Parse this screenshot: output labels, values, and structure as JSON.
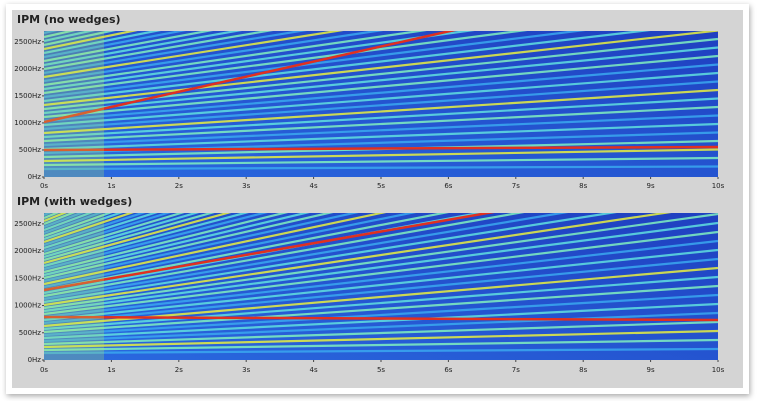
{
  "chart_data": [
    {
      "type": "spectrogram",
      "title": "IPM (no wedges)",
      "xlim": [
        0,
        10
      ],
      "ylim": [
        0,
        2700
      ],
      "xticks": [
        {
          "value": 0,
          "label": "0s"
        },
        {
          "value": 1,
          "label": "1s"
        },
        {
          "value": 2,
          "label": "2s"
        },
        {
          "value": 3,
          "label": "3s"
        },
        {
          "value": 4,
          "label": "4s"
        },
        {
          "value": 5,
          "label": "5s"
        },
        {
          "value": 6,
          "label": "6s"
        },
        {
          "value": 7,
          "label": "7s"
        },
        {
          "value": 8,
          "label": "8s"
        },
        {
          "value": 9,
          "label": "9s"
        },
        {
          "value": 10,
          "label": "10s"
        }
      ],
      "yticks": [
        {
          "value": 0,
          "label": "0Hz"
        },
        {
          "value": 500,
          "label": "500Hz"
        },
        {
          "value": 1000,
          "label": "1000Hz"
        },
        {
          "value": 1500,
          "label": "1500Hz"
        },
        {
          "value": 2000,
          "label": "2000Hz"
        },
        {
          "value": 2500,
          "label": "2500Hz"
        }
      ]
    },
    {
      "type": "spectrogram",
      "title": "IPM (with wedges)",
      "xlim": [
        0,
        10
      ],
      "ylim": [
        0,
        2700
      ],
      "xticks": [
        {
          "value": 0,
          "label": "0s"
        },
        {
          "value": 1,
          "label": "1s"
        },
        {
          "value": 2,
          "label": "2s"
        },
        {
          "value": 3,
          "label": "3s"
        },
        {
          "value": 4,
          "label": "4s"
        },
        {
          "value": 5,
          "label": "5s"
        },
        {
          "value": 6,
          "label": "6s"
        },
        {
          "value": 7,
          "label": "7s"
        },
        {
          "value": 8,
          "label": "8s"
        },
        {
          "value": 9,
          "label": "9s"
        },
        {
          "value": 10,
          "label": "10s"
        }
      ],
      "yticks": [
        {
          "value": 0,
          "label": "0Hz"
        },
        {
          "value": 500,
          "label": "500Hz"
        },
        {
          "value": 1000,
          "label": "1000Hz"
        },
        {
          "value": 1500,
          "label": "1500Hz"
        },
        {
          "value": 2000,
          "label": "2000Hz"
        },
        {
          "value": 2500,
          "label": "2500Hz"
        }
      ]
    }
  ]
}
